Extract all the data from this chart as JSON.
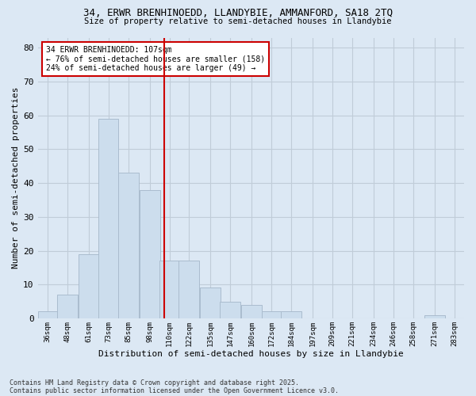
{
  "title1": "34, ERWR BRENHINOEDD, LLANDYBIE, AMMANFORD, SA18 2TQ",
  "title2": "Size of property relative to semi-detached houses in Llandybie",
  "xlabel": "Distribution of semi-detached houses by size in Llandybie",
  "ylabel": "Number of semi-detached properties",
  "categories": [
    "36sqm",
    "48sqm",
    "61sqm",
    "73sqm",
    "85sqm",
    "98sqm",
    "110sqm",
    "122sqm",
    "135sqm",
    "147sqm",
    "160sqm",
    "172sqm",
    "184sqm",
    "197sqm",
    "209sqm",
    "221sqm",
    "234sqm",
    "246sqm",
    "258sqm",
    "271sqm",
    "283sqm"
  ],
  "values": [
    2,
    7,
    19,
    59,
    43,
    38,
    17,
    17,
    9,
    5,
    4,
    2,
    2,
    0,
    0,
    0,
    0,
    0,
    0,
    1,
    0
  ],
  "bar_color": "#ccdded",
  "bar_edge_color": "#aabcce",
  "vline_x": 107,
  "annotation_title": "34 ERWR BRENHINOEDD: 107sqm",
  "annotation_line1": "← 76% of semi-detached houses are smaller (158)",
  "annotation_line2": "24% of semi-detached houses are larger (49) →",
  "annotation_box_color": "#ffffff",
  "annotation_box_edge": "#cc0000",
  "vline_color": "#cc0000",
  "ylim": [
    0,
    83
  ],
  "yticks": [
    0,
    10,
    20,
    30,
    40,
    50,
    60,
    70,
    80
  ],
  "grid_color": "#c0ccd8",
  "bg_color": "#dce8f4",
  "plot_bg_color": "#dce8f4",
  "footer1": "Contains HM Land Registry data © Crown copyright and database right 2025.",
  "footer2": "Contains public sector information licensed under the Open Government Licence v3.0."
}
